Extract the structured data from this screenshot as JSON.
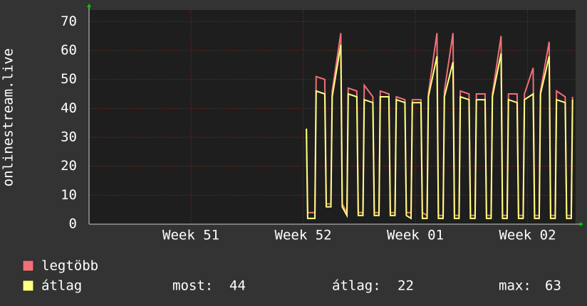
{
  "chart_data": {
    "type": "line",
    "y_label": "onlinestream.live",
    "xlim": [
      0,
      30.36
    ],
    "xticks": [
      {
        "value": 6.36,
        "label": "Week 51"
      },
      {
        "value": 13.36,
        "label": "Week 52"
      },
      {
        "value": 20.36,
        "label": "Week 01"
      },
      {
        "value": 27.36,
        "label": "Week 02"
      }
    ],
    "ylim": [
      0,
      74
    ],
    "yticks": [
      0,
      10,
      20,
      30,
      40,
      50,
      60,
      70
    ],
    "grid": true,
    "x": [
      13.56,
      13.64,
      14.09,
      14.17,
      14.71,
      14.8,
      15.09,
      15.17,
      15.71,
      15.8,
      16.09,
      16.17,
      16.71,
      16.8,
      17.09,
      17.17,
      17.71,
      17.8,
      18.09,
      18.17,
      18.71,
      18.8,
      19.09,
      19.17,
      19.71,
      19.8,
      20.09,
      20.17,
      20.71,
      20.8,
      21.09,
      21.17,
      21.71,
      21.8,
      22.09,
      22.17,
      22.71,
      22.8,
      23.09,
      23.17,
      23.71,
      23.8,
      24.09,
      24.17,
      24.71,
      24.8,
      25.09,
      25.17,
      25.71,
      25.8,
      26.09,
      26.17,
      26.71,
      26.8,
      27.09,
      27.17,
      27.71,
      27.8,
      28.09,
      28.17,
      28.71,
      28.8,
      29.09,
      29.17,
      29.71,
      29.8,
      30.09,
      30.17
    ],
    "series": [
      {
        "name": "legtöbb",
        "color": "#f07078",
        "values": [
          33,
          4,
          4,
          51,
          50,
          7,
          7,
          46,
          66,
          7,
          4,
          47,
          46,
          4,
          4,
          48,
          44,
          4,
          4,
          46,
          45,
          4,
          4,
          44,
          43,
          4,
          4,
          43,
          43,
          4,
          3,
          45,
          66,
          3,
          3,
          46,
          66,
          3,
          3,
          46,
          45,
          3,
          3,
          45,
          45,
          3,
          3,
          45,
          65,
          3,
          3,
          45,
          45,
          3,
          3,
          45,
          54,
          3,
          3,
          46,
          63,
          3,
          3,
          46,
          44,
          3,
          3,
          44
        ]
      },
      {
        "name": "átlag",
        "color": "#ffff80",
        "values": [
          33,
          2,
          2,
          46,
          45,
          6,
          6,
          44,
          62,
          6,
          3,
          45,
          44,
          3,
          3,
          43,
          42,
          3,
          3,
          44,
          44,
          3,
          3,
          43,
          42,
          3,
          2,
          42,
          42,
          2,
          2,
          44,
          58,
          2,
          2,
          44,
          56,
          2,
          2,
          44,
          43,
          2,
          2,
          43,
          43,
          2,
          2,
          44,
          59,
          2,
          2,
          43,
          42,
          2,
          2,
          43,
          45,
          2,
          2,
          45,
          58,
          2,
          2,
          43,
          42,
          2,
          2,
          43
        ]
      }
    ],
    "stats": [
      {
        "label": "most:",
        "value": 44
      },
      {
        "label": "átlag:",
        "value": 22
      },
      {
        "label": "max:",
        "value": 63
      }
    ]
  }
}
